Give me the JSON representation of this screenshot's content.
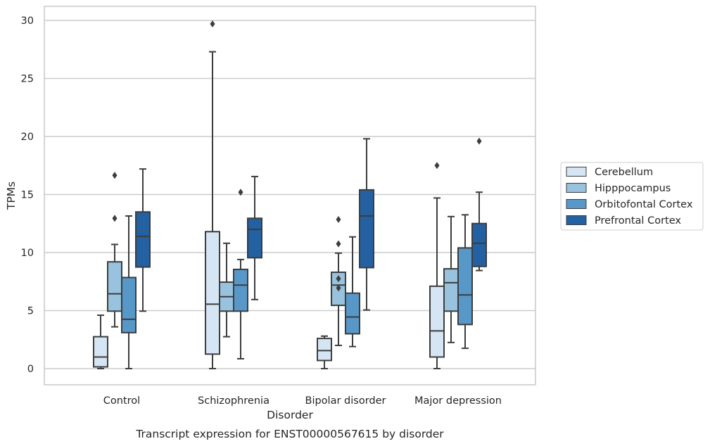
{
  "caption": "Transcript expression for ENST00000567615 by disorder",
  "chart_data": {
    "type": "box",
    "xlabel": "Disorder",
    "ylabel": "TPMs",
    "ylim": [
      -1.2,
      31.2
    ],
    "yticks": [
      0,
      5,
      10,
      15,
      20,
      25,
      30
    ],
    "grid": "horizontal",
    "legend_position": "outside-right",
    "categories": [
      "Control",
      "Schizophrenia",
      "Bipolar disorder",
      "Major depression"
    ],
    "series": [
      {
        "name": "Cerebellum",
        "color": "#d6e5f4",
        "boxes": [
          {
            "whislo": 0,
            "q1": 0.15,
            "med": 1.0,
            "q3": 2.75,
            "whishi": 4.6,
            "fliers": []
          },
          {
            "whislo": 0,
            "q1": 1.25,
            "med": 5.55,
            "q3": 11.8,
            "whishi": 27.3,
            "fliers": [
              29.7
            ]
          },
          {
            "whislo": 0,
            "q1": 0.7,
            "med": 1.55,
            "q3": 2.6,
            "whishi": 2.8,
            "fliers": []
          },
          {
            "whislo": 0,
            "q1": 1.0,
            "med": 3.25,
            "q3": 7.1,
            "whishi": 14.7,
            "fliers": [
              17.5
            ]
          }
        ]
      },
      {
        "name": "Hipppocampus",
        "color": "#98c2dd",
        "boxes": [
          {
            "whislo": 3.6,
            "q1": 4.95,
            "med": 6.45,
            "q3": 9.2,
            "whishi": 10.7,
            "fliers": [
              12.95,
              16.65
            ]
          },
          {
            "whislo": 2.75,
            "q1": 4.95,
            "med": 6.2,
            "q3": 7.45,
            "whishi": 10.8,
            "fliers": []
          },
          {
            "whislo": 2.0,
            "q1": 5.45,
            "med": 7.2,
            "q3": 8.3,
            "whishi": 9.95,
            "fliers": [
              6.95,
              7.75,
              10.75,
              12.85
            ]
          },
          {
            "whislo": 2.25,
            "q1": 4.95,
            "med": 7.4,
            "q3": 8.6,
            "whishi": 13.1,
            "fliers": []
          }
        ]
      },
      {
        "name": "Orbitofontal Cortex",
        "color": "#5898c8",
        "boxes": [
          {
            "whislo": 0,
            "q1": 3.1,
            "med": 4.25,
            "q3": 7.85,
            "whishi": 13.15,
            "fliers": []
          },
          {
            "whislo": 0.85,
            "q1": 4.95,
            "med": 7.2,
            "q3": 8.55,
            "whishi": 9.4,
            "fliers": [
              15.2
            ]
          },
          {
            "whislo": 1.9,
            "q1": 3.0,
            "med": 4.45,
            "q3": 6.5,
            "whishi": 11.35,
            "fliers": []
          },
          {
            "whislo": 1.75,
            "q1": 3.8,
            "med": 6.35,
            "q3": 10.4,
            "whishi": 13.25,
            "fliers": []
          }
        ]
      },
      {
        "name": "Prefrontal Cortex",
        "color": "#2361a3",
        "boxes": [
          {
            "whislo": 4.95,
            "q1": 8.75,
            "med": 11.4,
            "q3": 13.5,
            "whishi": 17.2,
            "fliers": []
          },
          {
            "whislo": 5.95,
            "q1": 9.55,
            "med": 12.0,
            "q3": 12.95,
            "whishi": 16.55,
            "fliers": []
          },
          {
            "whislo": 5.05,
            "q1": 8.7,
            "med": 13.15,
            "q3": 15.4,
            "whishi": 19.8,
            "fliers": []
          },
          {
            "whislo": 8.45,
            "q1": 8.8,
            "med": 10.8,
            "q3": 12.5,
            "whishi": 15.2,
            "fliers": [
              19.6
            ]
          }
        ]
      }
    ]
  }
}
